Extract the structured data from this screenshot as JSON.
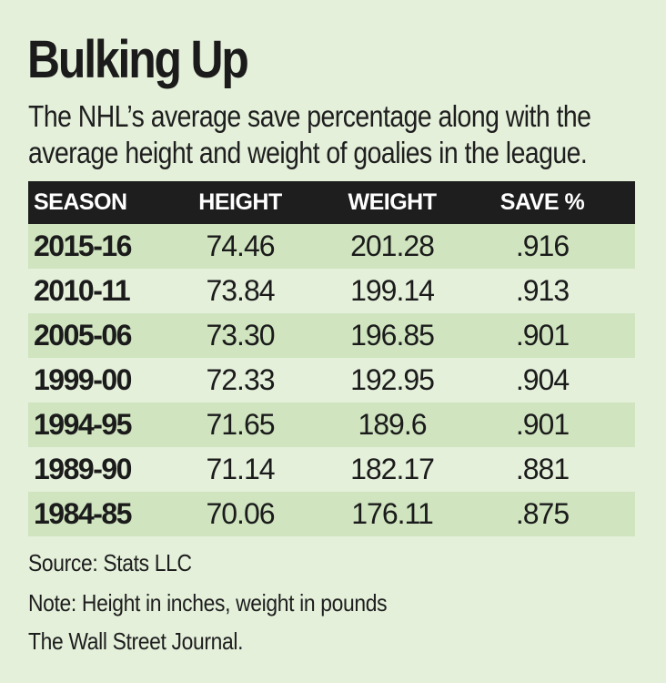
{
  "chart_data": {
    "type": "table",
    "title": "Bulking Up",
    "subtitle": "The NHL’s  average  save percentage along with the average height and weight of goalies in the league.",
    "columns": [
      "SEASON",
      "HEIGHT",
      "WEIGHT",
      "SAVE %"
    ],
    "rows": [
      {
        "season": "2015-16",
        "height": "74.46",
        "weight": "201.28",
        "save": ".916"
      },
      {
        "season": "2010-11",
        "height": "73.84",
        "weight": "199.14",
        "save": ".913"
      },
      {
        "season": "2005-06",
        "height": "73.30",
        "weight": "196.85",
        "save": ".901"
      },
      {
        "season": "1999-00",
        "height": "72.33",
        "weight": "192.95",
        "save": ".904"
      },
      {
        "season": "1994-95",
        "height": "71.65",
        "weight": "189.6",
        "save": ".901"
      },
      {
        "season": "1989-90",
        "height": "71.14",
        "weight": "182.17",
        "save": ".881"
      },
      {
        "season": "1984-85",
        "height": "70.06",
        "weight": "176.11",
        "save": ".875"
      }
    ],
    "source": "Source: Stats LLC",
    "note": "Note: Height in inches, weight in pounds",
    "credit": "The Wall Street Journal."
  },
  "colors": {
    "background": "#e4f0da",
    "row_shade": "#cfe4bf",
    "header_bg": "#1e1e1e",
    "header_text": "#ffffff",
    "text": "#1b1b1b"
  }
}
